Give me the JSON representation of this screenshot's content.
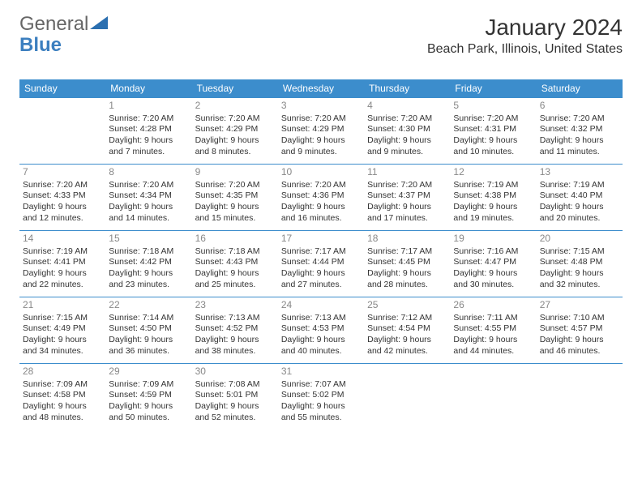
{
  "logo": {
    "text1": "General",
    "text2": "Blue"
  },
  "title": "January 2024",
  "location": "Beach Park, Illinois, United States",
  "colors": {
    "header_bg": "#3c8dcc",
    "header_text": "#ffffff",
    "row_border": "#3c8dcc",
    "daynum": "#888888",
    "body_text": "#333333",
    "logo_gray": "#666666",
    "logo_blue": "#3c7fbf",
    "background": "#ffffff"
  },
  "day_headers": [
    "Sunday",
    "Monday",
    "Tuesday",
    "Wednesday",
    "Thursday",
    "Friday",
    "Saturday"
  ],
  "weeks": [
    [
      {
        "n": "",
        "sr": "",
        "ss": "",
        "dl": ""
      },
      {
        "n": "1",
        "sr": "7:20 AM",
        "ss": "4:28 PM",
        "dl": "9 hours and 7 minutes."
      },
      {
        "n": "2",
        "sr": "7:20 AM",
        "ss": "4:29 PM",
        "dl": "9 hours and 8 minutes."
      },
      {
        "n": "3",
        "sr": "7:20 AM",
        "ss": "4:29 PM",
        "dl": "9 hours and 9 minutes."
      },
      {
        "n": "4",
        "sr": "7:20 AM",
        "ss": "4:30 PM",
        "dl": "9 hours and 9 minutes."
      },
      {
        "n": "5",
        "sr": "7:20 AM",
        "ss": "4:31 PM",
        "dl": "9 hours and 10 minutes."
      },
      {
        "n": "6",
        "sr": "7:20 AM",
        "ss": "4:32 PM",
        "dl": "9 hours and 11 minutes."
      }
    ],
    [
      {
        "n": "7",
        "sr": "7:20 AM",
        "ss": "4:33 PM",
        "dl": "9 hours and 12 minutes."
      },
      {
        "n": "8",
        "sr": "7:20 AM",
        "ss": "4:34 PM",
        "dl": "9 hours and 14 minutes."
      },
      {
        "n": "9",
        "sr": "7:20 AM",
        "ss": "4:35 PM",
        "dl": "9 hours and 15 minutes."
      },
      {
        "n": "10",
        "sr": "7:20 AM",
        "ss": "4:36 PM",
        "dl": "9 hours and 16 minutes."
      },
      {
        "n": "11",
        "sr": "7:20 AM",
        "ss": "4:37 PM",
        "dl": "9 hours and 17 minutes."
      },
      {
        "n": "12",
        "sr": "7:19 AM",
        "ss": "4:38 PM",
        "dl": "9 hours and 19 minutes."
      },
      {
        "n": "13",
        "sr": "7:19 AM",
        "ss": "4:40 PM",
        "dl": "9 hours and 20 minutes."
      }
    ],
    [
      {
        "n": "14",
        "sr": "7:19 AM",
        "ss": "4:41 PM",
        "dl": "9 hours and 22 minutes."
      },
      {
        "n": "15",
        "sr": "7:18 AM",
        "ss": "4:42 PM",
        "dl": "9 hours and 23 minutes."
      },
      {
        "n": "16",
        "sr": "7:18 AM",
        "ss": "4:43 PM",
        "dl": "9 hours and 25 minutes."
      },
      {
        "n": "17",
        "sr": "7:17 AM",
        "ss": "4:44 PM",
        "dl": "9 hours and 27 minutes."
      },
      {
        "n": "18",
        "sr": "7:17 AM",
        "ss": "4:45 PM",
        "dl": "9 hours and 28 minutes."
      },
      {
        "n": "19",
        "sr": "7:16 AM",
        "ss": "4:47 PM",
        "dl": "9 hours and 30 minutes."
      },
      {
        "n": "20",
        "sr": "7:15 AM",
        "ss": "4:48 PM",
        "dl": "9 hours and 32 minutes."
      }
    ],
    [
      {
        "n": "21",
        "sr": "7:15 AM",
        "ss": "4:49 PM",
        "dl": "9 hours and 34 minutes."
      },
      {
        "n": "22",
        "sr": "7:14 AM",
        "ss": "4:50 PM",
        "dl": "9 hours and 36 minutes."
      },
      {
        "n": "23",
        "sr": "7:13 AM",
        "ss": "4:52 PM",
        "dl": "9 hours and 38 minutes."
      },
      {
        "n": "24",
        "sr": "7:13 AM",
        "ss": "4:53 PM",
        "dl": "9 hours and 40 minutes."
      },
      {
        "n": "25",
        "sr": "7:12 AM",
        "ss": "4:54 PM",
        "dl": "9 hours and 42 minutes."
      },
      {
        "n": "26",
        "sr": "7:11 AM",
        "ss": "4:55 PM",
        "dl": "9 hours and 44 minutes."
      },
      {
        "n": "27",
        "sr": "7:10 AM",
        "ss": "4:57 PM",
        "dl": "9 hours and 46 minutes."
      }
    ],
    [
      {
        "n": "28",
        "sr": "7:09 AM",
        "ss": "4:58 PM",
        "dl": "9 hours and 48 minutes."
      },
      {
        "n": "29",
        "sr": "7:09 AM",
        "ss": "4:59 PM",
        "dl": "9 hours and 50 minutes."
      },
      {
        "n": "30",
        "sr": "7:08 AM",
        "ss": "5:01 PM",
        "dl": "9 hours and 52 minutes."
      },
      {
        "n": "31",
        "sr": "7:07 AM",
        "ss": "5:02 PM",
        "dl": "9 hours and 55 minutes."
      },
      {
        "n": "",
        "sr": "",
        "ss": "",
        "dl": ""
      },
      {
        "n": "",
        "sr": "",
        "ss": "",
        "dl": ""
      },
      {
        "n": "",
        "sr": "",
        "ss": "",
        "dl": ""
      }
    ]
  ],
  "labels": {
    "sunrise": "Sunrise:",
    "sunset": "Sunset:",
    "daylight": "Daylight:"
  }
}
